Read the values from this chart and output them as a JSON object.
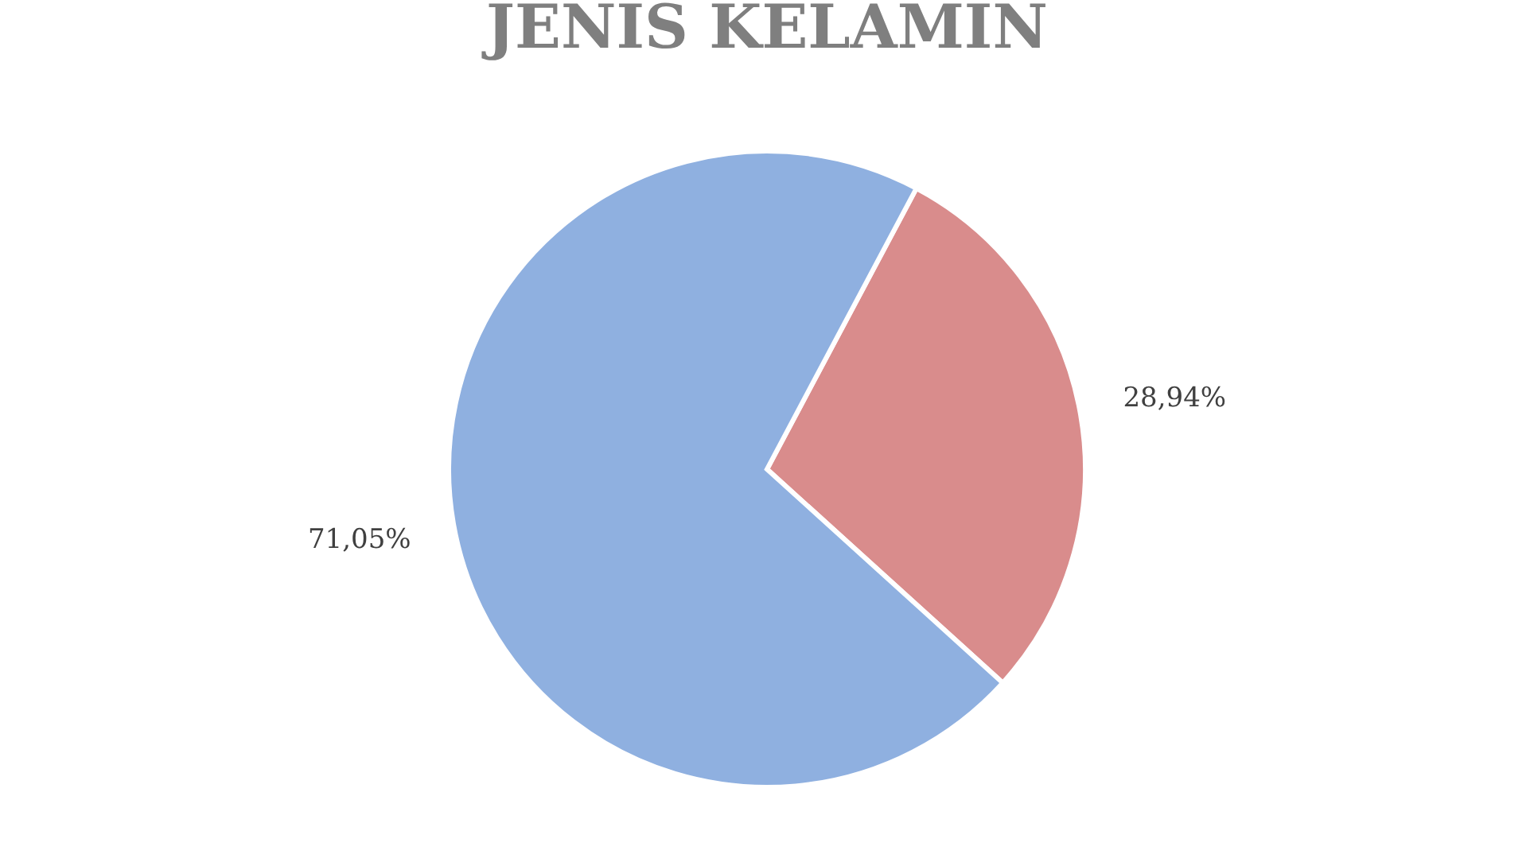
{
  "chart_data": {
    "type": "pie",
    "title": "JENIS KELAMIN",
    "categories": [
      null,
      null
    ],
    "values": [
      28.94,
      71.05
    ],
    "colors": [
      "#d98c8c",
      "#8fb0e0"
    ],
    "value_labels": [
      "28,94%",
      "71,05%"
    ],
    "legend": false
  }
}
